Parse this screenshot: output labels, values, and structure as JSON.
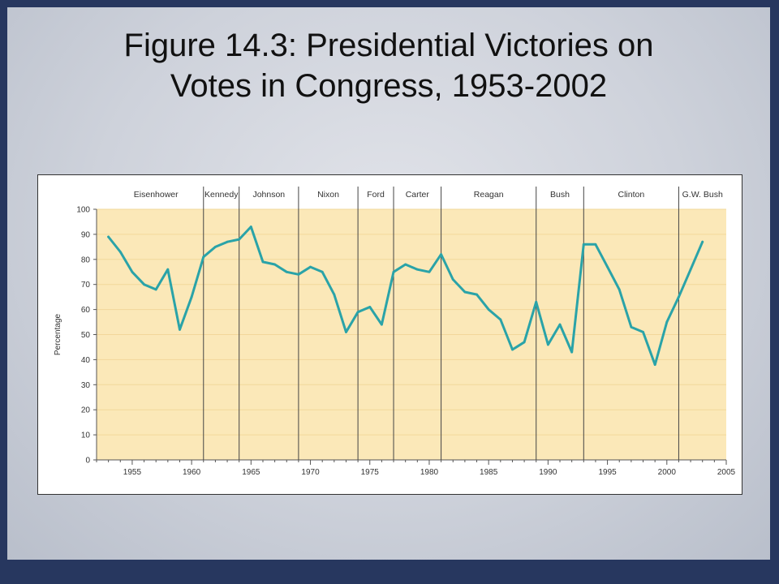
{
  "slide": {
    "title_line1": "Figure 14.3: Presidential Victories on",
    "title_line2": "Votes in Congress, 1953-2002"
  },
  "chart_data": {
    "type": "line",
    "title": "Figure 14.3: Presidential Victories on Votes in Congress, 1953-2002",
    "xlabel": "",
    "ylabel": "Percentage",
    "xlim": [
      1952,
      2005
    ],
    "ylim": [
      0,
      100
    ],
    "x_ticks": [
      1955,
      1960,
      1965,
      1970,
      1975,
      1980,
      1985,
      1990,
      1995,
      2000,
      2005
    ],
    "y_ticks": [
      0,
      10,
      20,
      30,
      40,
      50,
      60,
      70,
      80,
      90,
      100
    ],
    "grid": "horizontal",
    "colors": {
      "line": "#2aa3a8",
      "band": "#fbe8b8",
      "divider": "#444444"
    },
    "series": [
      {
        "x": [
          1953,
          1954,
          1955,
          1956,
          1957,
          1958,
          1959,
          1960,
          1961,
          1962,
          1963,
          1964,
          1965,
          1966,
          1967,
          1968,
          1969,
          1970,
          1971,
          1972,
          1973,
          1974,
          1975,
          1976,
          1977,
          1978,
          1979,
          1980,
          1981,
          1982,
          1983,
          1984,
          1985,
          1986,
          1987,
          1988,
          1989,
          1990,
          1991,
          1992,
          1993,
          1994,
          1995,
          1996,
          1997,
          1998,
          1999,
          2000,
          2001,
          2002,
          2003
        ],
        "values": [
          89,
          83,
          75,
          70,
          68,
          76,
          52,
          65,
          81,
          85,
          87,
          88,
          93,
          79,
          78,
          75,
          74,
          77,
          75,
          66,
          51,
          59,
          61,
          54,
          75,
          78,
          76,
          75,
          82,
          72,
          67,
          66,
          60,
          56,
          44,
          47,
          63,
          46,
          54,
          43,
          86,
          86,
          77,
          68,
          53,
          51,
          38,
          55,
          65,
          76,
          87
        ]
      }
    ],
    "presidencies": [
      {
        "name": "Eisenhower",
        "start": 1953,
        "end": 1961
      },
      {
        "name": "Kennedy",
        "start": 1961,
        "end": 1964
      },
      {
        "name": "Johnson",
        "start": 1964,
        "end": 1969
      },
      {
        "name": "Nixon",
        "start": 1969,
        "end": 1974
      },
      {
        "name": "Ford",
        "start": 1974,
        "end": 1977
      },
      {
        "name": "Carter",
        "start": 1977,
        "end": 1981
      },
      {
        "name": "Reagan",
        "start": 1981,
        "end": 1989
      },
      {
        "name": "Bush",
        "start": 1989,
        "end": 1993
      },
      {
        "name": "Clinton",
        "start": 1993,
        "end": 2001
      },
      {
        "name": "G.W. Bush",
        "start": 2001,
        "end": 2005
      }
    ]
  }
}
